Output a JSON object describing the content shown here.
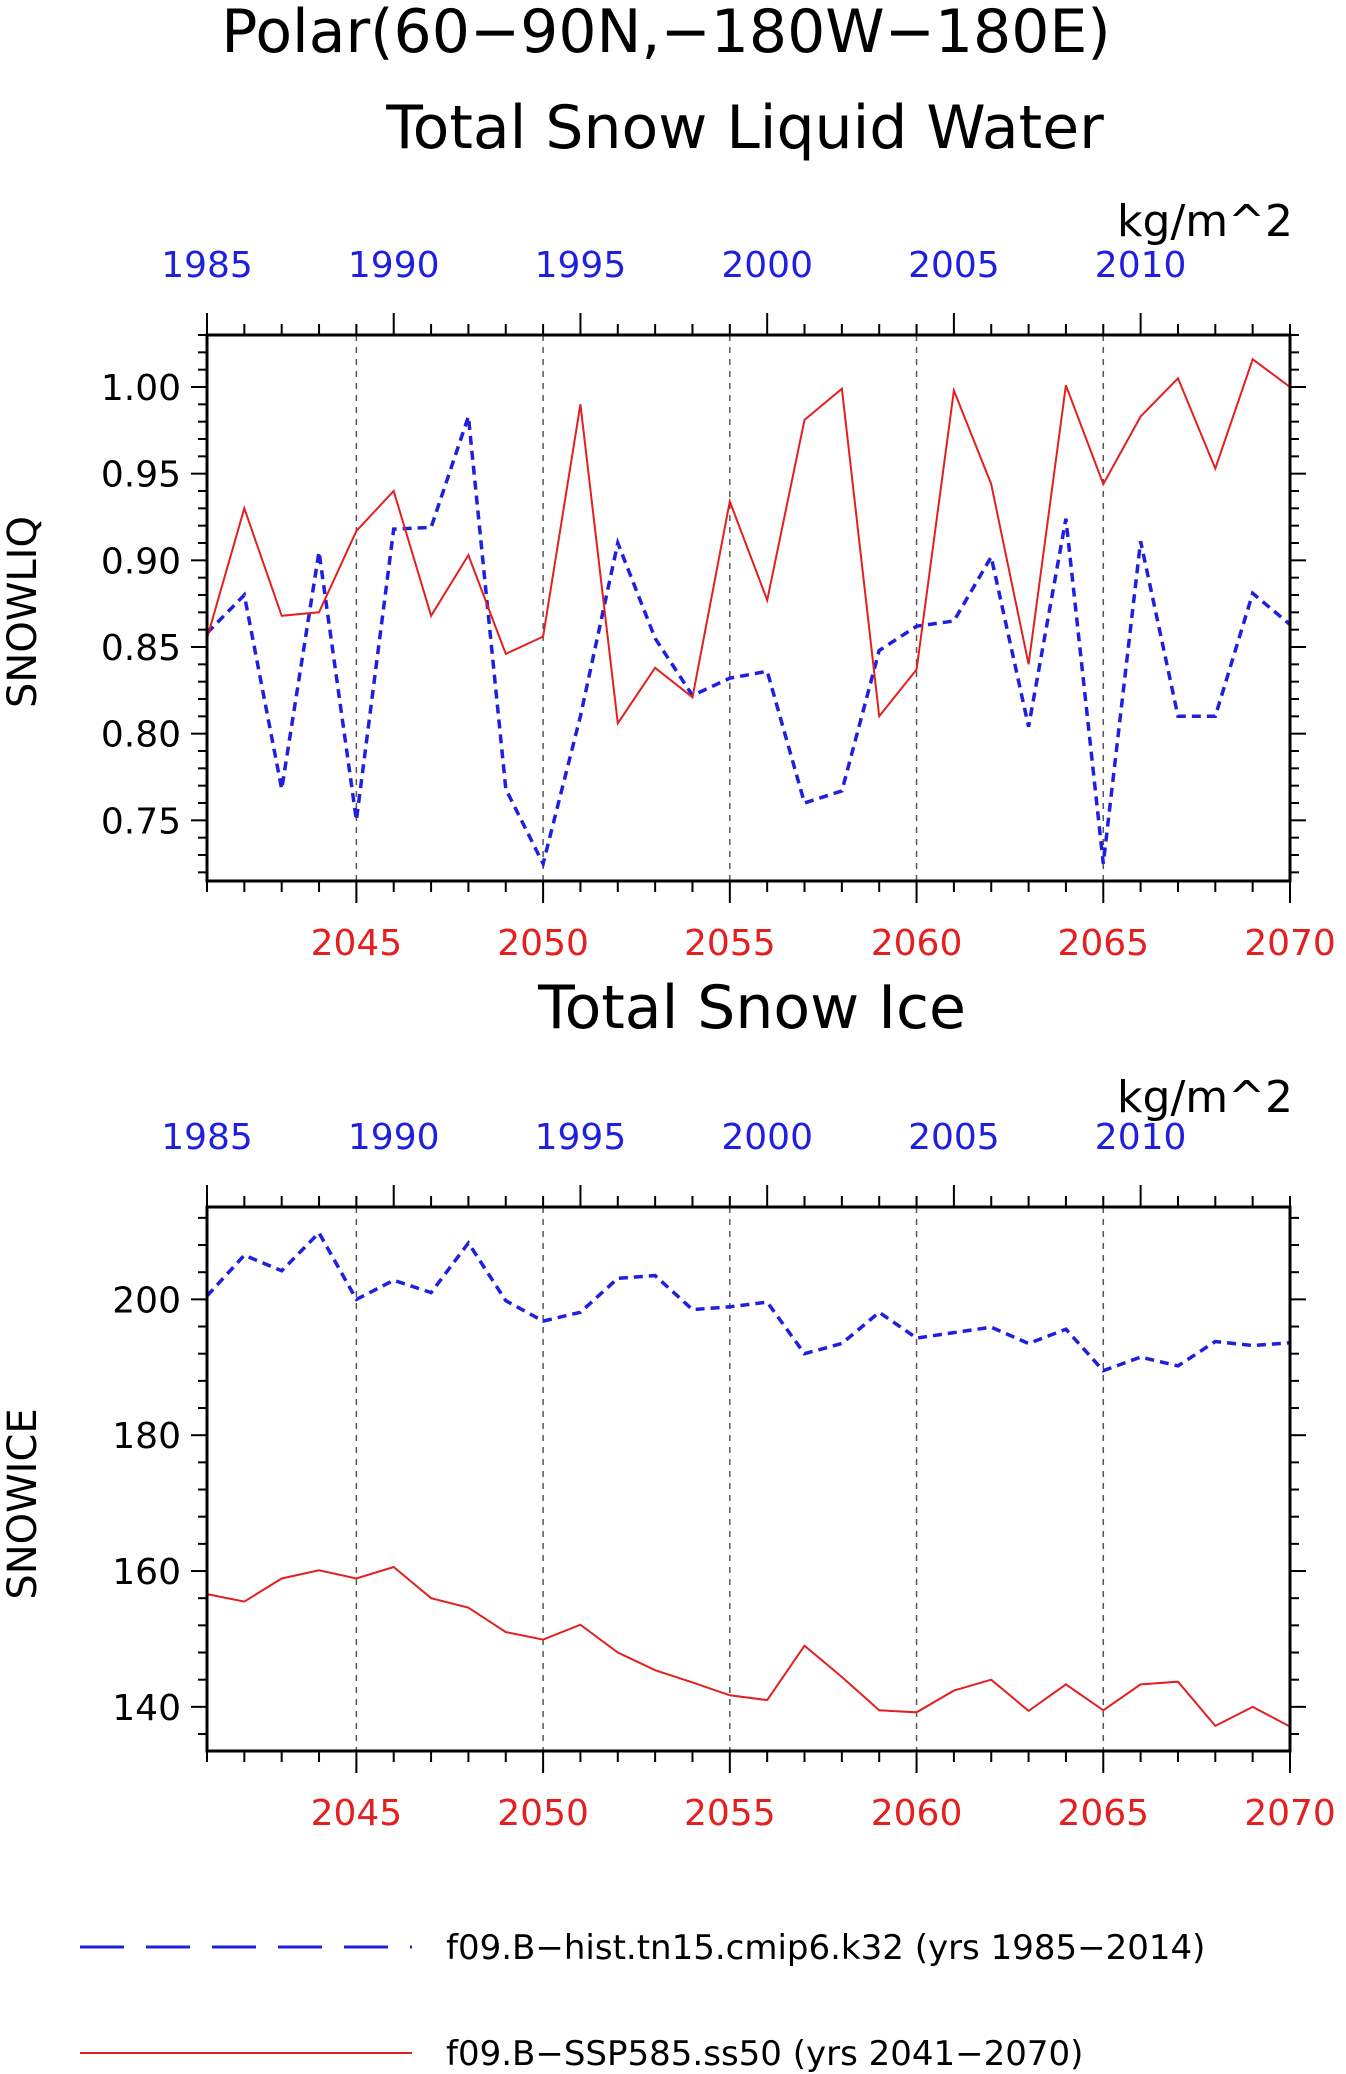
{
  "title": {
    "line1": "Polar(60−90N,−180W−180E)"
  },
  "colors": {
    "hist": "#1f1fdf",
    "ssp": "#e3201f",
    "axis": "#000000",
    "grid": "#555555"
  },
  "legend": {
    "hist_label": "f09.B−hist.tn15.cmip6.k32 (yrs 1985−2014)",
    "ssp_label": "f09.B−SSP585.ss50 (yrs 2041−2070)"
  },
  "chart_data": [
    {
      "type": "line",
      "title": "Total Snow Liquid Water",
      "ylabel": "SNOWLIQ",
      "units": "kg/m^2",
      "grid": "vertical dashed at bottom-axis major ticks",
      "ylim": [
        0.715,
        1.03
      ],
      "yticks": [
        0.75,
        0.8,
        0.85,
        0.9,
        0.95,
        1.0
      ],
      "ytick_labels": [
        "0.75",
        "0.80",
        "0.85",
        "0.90",
        "0.95",
        "1.00"
      ],
      "x_bottom": {
        "range": [
          2041,
          2070
        ],
        "ticks": [
          2045,
          2050,
          2055,
          2060,
          2065,
          2070
        ],
        "labels": [
          "2045",
          "2050",
          "2055",
          "2060",
          "2065",
          "2070"
        ]
      },
      "x_top": {
        "range": [
          1985,
          2014
        ],
        "ticks": [
          1985,
          1990,
          1995,
          2000,
          2005,
          2010
        ],
        "labels": [
          "1985",
          "1990",
          "1995",
          "2000",
          "2005",
          "2010"
        ]
      },
      "series": [
        {
          "name": "f09.B−hist.tn15.cmip6.k32 (yrs 1985−2014)",
          "axis": "top",
          "style": "dashed",
          "x": [
            1985,
            1986,
            1987,
            1988,
            1989,
            1990,
            1991,
            1992,
            1993,
            1994,
            1995,
            1996,
            1997,
            1998,
            1999,
            2000,
            2001,
            2002,
            2003,
            2004,
            2005,
            2006,
            2007,
            2008,
            2009,
            2010,
            2011,
            2012,
            2013,
            2014
          ],
          "values": [
            0.858,
            0.88,
            0.768,
            0.905,
            0.75,
            0.918,
            0.919,
            0.983,
            0.768,
            0.725,
            0.81,
            0.91,
            0.855,
            0.822,
            0.832,
            0.836,
            0.76,
            0.767,
            0.848,
            0.862,
            0.865,
            0.902,
            0.804,
            0.924,
            0.725,
            0.911,
            0.81,
            0.81,
            0.881,
            0.863
          ]
        },
        {
          "name": "f09.B−SSP585.ss50 (yrs 2041−2070)",
          "axis": "bottom",
          "style": "solid",
          "x": [
            2041,
            2042,
            2043,
            2044,
            2045,
            2046,
            2047,
            2048,
            2049,
            2050,
            2051,
            2052,
            2053,
            2054,
            2055,
            2056,
            2057,
            2058,
            2059,
            2060,
            2061,
            2062,
            2063,
            2064,
            2065,
            2066,
            2067,
            2068,
            2069,
            2070
          ],
          "values": [
            0.855,
            0.93,
            0.868,
            0.87,
            0.917,
            0.94,
            0.868,
            0.903,
            0.846,
            0.856,
            0.99,
            0.806,
            0.838,
            0.821,
            0.934,
            0.877,
            0.981,
            0.999,
            0.81,
            0.837,
            0.998,
            0.944,
            0.84,
            1.001,
            0.944,
            0.983,
            1.005,
            0.953,
            1.016,
            1.0
          ]
        }
      ]
    },
    {
      "type": "line",
      "title": "Total Snow Ice",
      "ylabel": "SNOWICE",
      "units": "kg/m^2",
      "grid": "vertical dashed at bottom-axis major ticks",
      "ylim": [
        133.5,
        213.6
      ],
      "yticks": [
        140,
        160,
        180,
        200
      ],
      "ytick_labels": [
        "140",
        "160",
        "180",
        "200"
      ],
      "x_bottom": {
        "range": [
          2041,
          2070
        ],
        "ticks": [
          2045,
          2050,
          2055,
          2060,
          2065,
          2070
        ],
        "labels": [
          "2045",
          "2050",
          "2055",
          "2060",
          "2065",
          "2070"
        ]
      },
      "x_top": {
        "range": [
          1985,
          2014
        ],
        "ticks": [
          1985,
          1990,
          1995,
          2000,
          2005,
          2010
        ],
        "labels": [
          "1985",
          "1990",
          "1995",
          "2000",
          "2005",
          "2010"
        ]
      },
      "series": [
        {
          "name": "f09.B−hist.tn15.cmip6.k32 (yrs 1985−2014)",
          "axis": "top",
          "style": "dashed",
          "x": [
            1985,
            1986,
            1987,
            1988,
            1989,
            1990,
            1991,
            1992,
            1993,
            1994,
            1995,
            1996,
            1997,
            1998,
            1999,
            2000,
            2001,
            2002,
            2003,
            2004,
            2005,
            2006,
            2007,
            2008,
            2009,
            2010,
            2011,
            2012,
            2013,
            2014
          ],
          "values": [
            200.5,
            206.5,
            204.2,
            209.8,
            200.0,
            202.8,
            201.0,
            208.3,
            199.8,
            196.8,
            198.1,
            203.1,
            203.5,
            198.5,
            198.9,
            199.6,
            192.0,
            193.5,
            198.1,
            194.3,
            195.1,
            195.9,
            193.5,
            195.6,
            189.5,
            191.5,
            190.2,
            193.8,
            193.2,
            193.6
          ]
        },
        {
          "name": "f09.B−SSP585.ss50 (yrs 2041−2070)",
          "axis": "bottom",
          "style": "solid",
          "x": [
            2041,
            2042,
            2043,
            2044,
            2045,
            2046,
            2047,
            2048,
            2049,
            2050,
            2051,
            2052,
            2053,
            2054,
            2055,
            2056,
            2057,
            2058,
            2059,
            2060,
            2061,
            2062,
            2063,
            2064,
            2065,
            2066,
            2067,
            2068,
            2069,
            2070
          ],
          "values": [
            156.6,
            155.5,
            158.9,
            160.1,
            158.9,
            160.6,
            156.0,
            154.6,
            151.0,
            149.9,
            152.1,
            148.0,
            145.4,
            143.6,
            141.7,
            141.0,
            149.0,
            144.4,
            139.5,
            139.2,
            142.4,
            144.0,
            139.4,
            143.3,
            139.5,
            143.3,
            143.7,
            137.2,
            140.0,
            137.1
          ]
        }
      ]
    }
  ]
}
